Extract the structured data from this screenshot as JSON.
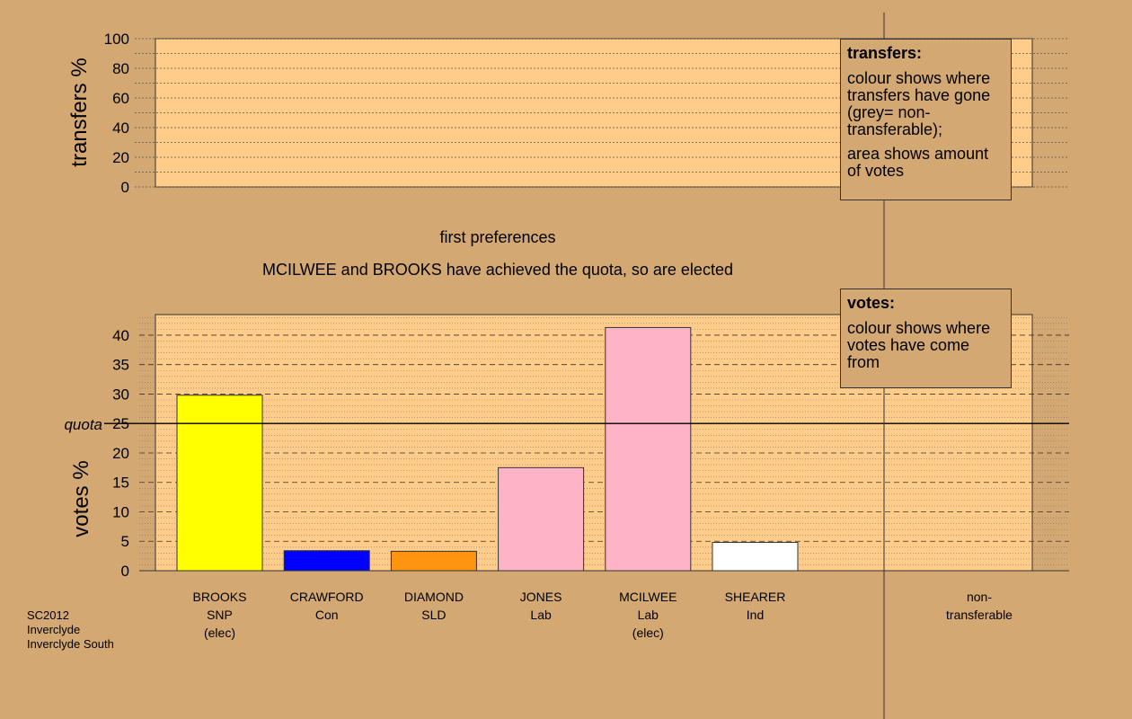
{
  "title": "first preferences",
  "subtitle": "MCILWEE and BROOKS have achieved the quota, so are elected",
  "footer": [
    "SC2012",
    "Inverclyde",
    "Inverclyde South"
  ],
  "legend_transfers": {
    "title": "transfers:",
    "line1": "colour shows where transfers have gone (grey= non-transferable);",
    "line2": "area shows amount of votes"
  },
  "legend_votes": {
    "title": "votes:",
    "line1": "colour shows where votes have come from"
  },
  "colors": {
    "background": "#d4a872",
    "plot": "#ffcc8a"
  },
  "chart_data": [
    {
      "type": "bar",
      "name": "transfers",
      "ylabel": "transfers %",
      "ylim": [
        0,
        100
      ],
      "yticks": [
        0,
        20,
        40,
        60,
        80,
        100
      ],
      "categories": [],
      "values": []
    },
    {
      "type": "bar",
      "name": "votes",
      "ylabel": "votes %",
      "ylim": [
        0,
        43.5
      ],
      "yticks": [
        0,
        5,
        10,
        15,
        20,
        25,
        30,
        35,
        40
      ],
      "quota": 25,
      "quota_label": "quota",
      "categories": [
        {
          "lines": [
            "BROOKS",
            "SNP",
            "(elec)"
          ],
          "color": "#ffff00",
          "value": 29.8
        },
        {
          "lines": [
            "CRAWFORD",
            "Con"
          ],
          "color": "#0000ff",
          "value": 3.4
        },
        {
          "lines": [
            "DIAMOND",
            "SLD"
          ],
          "color": "#ff9410",
          "value": 3.3
        },
        {
          "lines": [
            "JONES",
            "Lab"
          ],
          "color": "#ffb3c6",
          "value": 17.5
        },
        {
          "lines": [
            "MCILWEE",
            "Lab",
            "(elec)"
          ],
          "color": "#ffb3c6",
          "value": 41.3
        },
        {
          "lines": [
            "SHEARER",
            "Ind"
          ],
          "color": "#ffffff",
          "value": 4.8
        }
      ],
      "nontransferable": {
        "lines": [
          "non-",
          "transferable"
        ],
        "value": 0
      }
    }
  ]
}
